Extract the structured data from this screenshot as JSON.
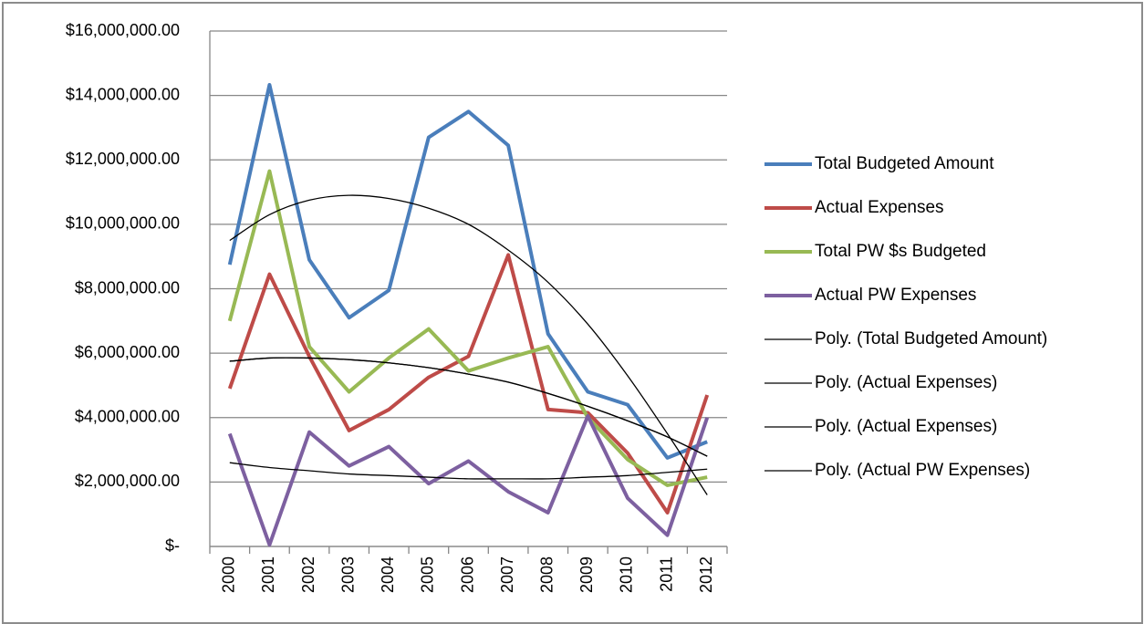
{
  "chart_data": {
    "type": "line",
    "categories": [
      "2000",
      "2001",
      "2002",
      "2003",
      "2004",
      "2005",
      "2006",
      "2007",
      "2008",
      "2009",
      "2010",
      "2011",
      "2012"
    ],
    "ylim": [
      0,
      16000000
    ],
    "yticks": [
      {
        "value": 0,
        "label": "$-"
      },
      {
        "value": 2000000,
        "label": "$2,000,000.00"
      },
      {
        "value": 4000000,
        "label": "$4,000,000.00"
      },
      {
        "value": 6000000,
        "label": "$6,000,000.00"
      },
      {
        "value": 8000000,
        "label": "$8,000,000.00"
      },
      {
        "value": 10000000,
        "label": "$10,000,000.00"
      },
      {
        "value": 12000000,
        "label": "$12,000,000.00"
      },
      {
        "value": 14000000,
        "label": "$14,000,000.00"
      },
      {
        "value": 16000000,
        "label": "$16,000,000.00"
      }
    ],
    "grid": true,
    "legend": "right",
    "series": [
      {
        "name": "Total Budgeted Amount",
        "color": "#4a7ebb",
        "line_width": 4,
        "values": [
          8750000,
          14330000,
          8900000,
          7100000,
          7950000,
          12700000,
          13500000,
          12450000,
          6600000,
          4800000,
          4400000,
          2750000,
          3250000
        ]
      },
      {
        "name": "Actual Expenses",
        "color": "#be4b48",
        "line_width": 4,
        "values": [
          4900000,
          8450000,
          5900000,
          3600000,
          4250000,
          5250000,
          5900000,
          9050000,
          4250000,
          4150000,
          2900000,
          1050000,
          4700000
        ]
      },
      {
        "name": "Total PW $s Budgeted",
        "color": "#98b954",
        "line_width": 4,
        "values": [
          7000000,
          11650000,
          6200000,
          4800000,
          5850000,
          6750000,
          5450000,
          5850000,
          6200000,
          4000000,
          2700000,
          1900000,
          2150000
        ]
      },
      {
        "name": "Actual PW Expenses",
        "color": "#7d60a0",
        "line_width": 4,
        "values": [
          3500000,
          50000,
          3550000,
          2500000,
          3100000,
          1950000,
          2650000,
          1700000,
          1050000,
          4050000,
          1500000,
          350000,
          4000000
        ]
      },
      {
        "name": "Poly. (Total Budgeted Amount)",
        "color": "#000000",
        "line_width": 1.3,
        "values": [
          9500000,
          10300000,
          10750000,
          10900000,
          10800000,
          10500000,
          10000000,
          9200000,
          8200000,
          6900000,
          5300000,
          3500000,
          1600000
        ]
      },
      {
        "name": "Poly. (Actual Expenses)",
        "color": "#000000",
        "line_width": 1.3,
        "values": [
          5750000,
          5850000,
          5850000,
          5800000,
          5700000,
          5550000,
          5350000,
          5100000,
          4750000,
          4350000,
          3900000,
          3400000,
          2800000
        ]
      },
      {
        "name": "Poly. (Actual Expenses)",
        "color": "#000000",
        "line_width": 1.3,
        "values": [
          5750000,
          5850000,
          5850000,
          5800000,
          5700000,
          5550000,
          5350000,
          5100000,
          4750000,
          4350000,
          3900000,
          3400000,
          2800000
        ]
      },
      {
        "name": "Poly. (Actual PW Expenses)",
        "color": "#000000",
        "line_width": 1.3,
        "values": [
          2600000,
          2450000,
          2350000,
          2250000,
          2200000,
          2150000,
          2100000,
          2100000,
          2100000,
          2150000,
          2200000,
          2300000,
          2400000
        ]
      }
    ]
  }
}
